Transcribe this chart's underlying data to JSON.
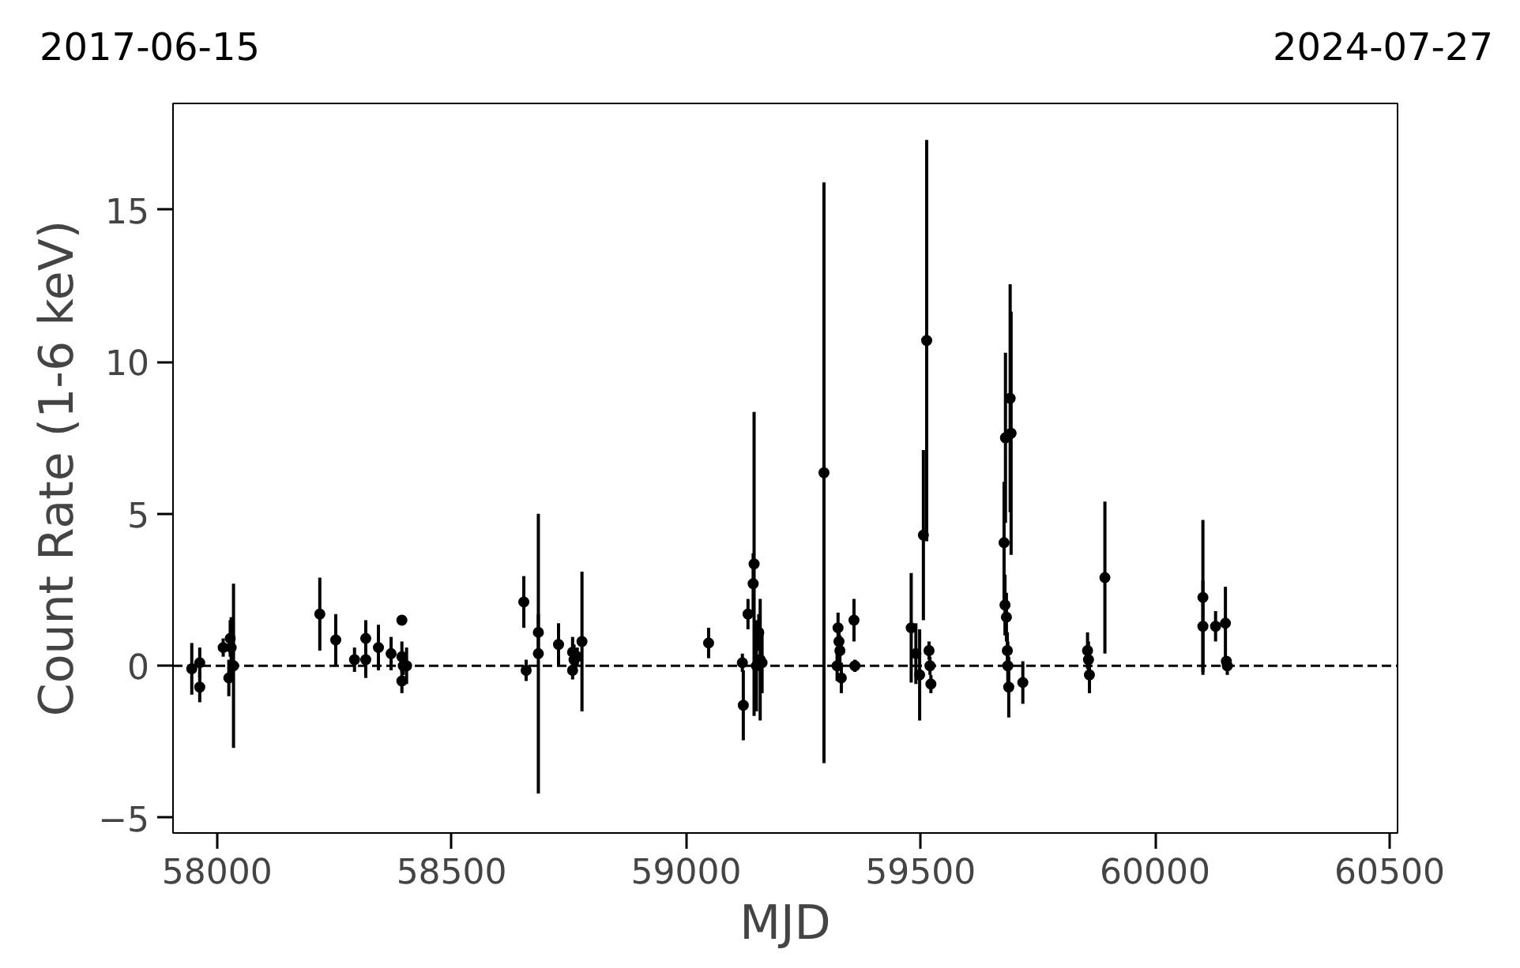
{
  "chart_data": {
    "type": "scatter",
    "xlabel": "MJD",
    "ylabel": "Count Rate (1-6 keV)",
    "annotations": [
      "2017-06-15",
      "2024-07-27"
    ],
    "x": [
      57946,
      57963,
      57963,
      58013,
      58025,
      58028,
      58030,
      58035,
      58219,
      58253,
      58293,
      58317,
      58317,
      58344,
      58371,
      58394,
      58394,
      58394,
      58397,
      58404,
      58654,
      58659,
      58685,
      58685,
      58728,
      58758,
      58758,
      58761,
      58768,
      58778,
      59048,
      59120,
      59122,
      59132,
      59143,
      59145,
      59150,
      59155,
      59158,
      59162,
      59294,
      59322,
      59324,
      59326,
      59328,
      59331,
      59358,
      59360,
      59480,
      59490,
      59498,
      59506,
      59513,
      59518,
      59520,
      59522,
      59678,
      59680,
      59681,
      59683,
      59685,
      59686,
      59688,
      59691,
      59693,
      59718,
      59856,
      59858,
      59860,
      59893,
      60102,
      60102,
      60129,
      60150,
      60152,
      60154
    ],
    "values": [
      -0.1,
      0.1,
      -0.7,
      0.6,
      -0.4,
      0.9,
      0.6,
      0.0,
      1.7,
      0.85,
      0.2,
      0.9,
      0.2,
      0.6,
      0.4,
      1.5,
      0.3,
      -0.5,
      0.0,
      0.0,
      2.1,
      -0.15,
      1.1,
      0.4,
      0.7,
      0.45,
      -0.15,
      0.2,
      0.3,
      0.8,
      0.75,
      0.1,
      -1.3,
      1.7,
      2.7,
      3.35,
      0.0,
      1.1,
      0.2,
      0.1,
      6.35,
      0.0,
      1.25,
      0.8,
      0.5,
      -0.4,
      1.5,
      0.0,
      1.25,
      0.4,
      -0.3,
      4.3,
      10.7,
      0.5,
      0.0,
      -0.6,
      4.05,
      2.0,
      7.5,
      1.6,
      0.5,
      0.0,
      -0.7,
      8.8,
      7.65,
      -0.55,
      0.5,
      0.2,
      -0.3,
      2.9,
      2.25,
      1.3,
      1.3,
      1.4,
      0.15,
      0.0
    ],
    "errors": [
      0.85,
      0.5,
      0.5,
      0.3,
      0.6,
      0.6,
      1.0,
      2.7,
      1.2,
      0.85,
      0.4,
      0.6,
      0.6,
      0.75,
      0.55,
      0.15,
      0.5,
      0.4,
      0.3,
      0.6,
      0.85,
      0.35,
      0.6,
      4.6,
      0.7,
      0.5,
      0.3,
      0.5,
      0.3,
      2.3,
      0.5,
      0.3,
      1.15,
      0.5,
      1.0,
      5.0,
      1.5,
      0.6,
      2.0,
      1.0,
      9.55,
      0.5,
      0.5,
      0.5,
      0.5,
      0.5,
      0.7,
      0.2,
      1.8,
      1.0,
      1.5,
      2.8,
      6.6,
      0.3,
      0.3,
      0.3,
      2.0,
      1.0,
      2.8,
      0.8,
      0.6,
      0.8,
      1.0,
      3.75,
      4.0,
      0.7,
      0.6,
      0.6,
      0.6,
      2.5,
      2.55,
      1.5,
      0.5,
      1.2,
      0.1,
      0.3
    ],
    "color": "#000000",
    "marker": "circle",
    "grid": false,
    "xlim": [
      57906,
      60517
    ],
    "xticks": [
      58000,
      58500,
      59000,
      59500,
      60000,
      60500
    ],
    "ylim": [
      -5.5,
      18.5
    ],
    "yticks": [
      {
        "value": -5,
        "label": "−5"
      },
      0,
      5,
      10,
      15
    ],
    "ref_lines": [
      {
        "axis": "y",
        "value": 0,
        "color": "#000000",
        "line_style": "dashed"
      }
    ]
  }
}
